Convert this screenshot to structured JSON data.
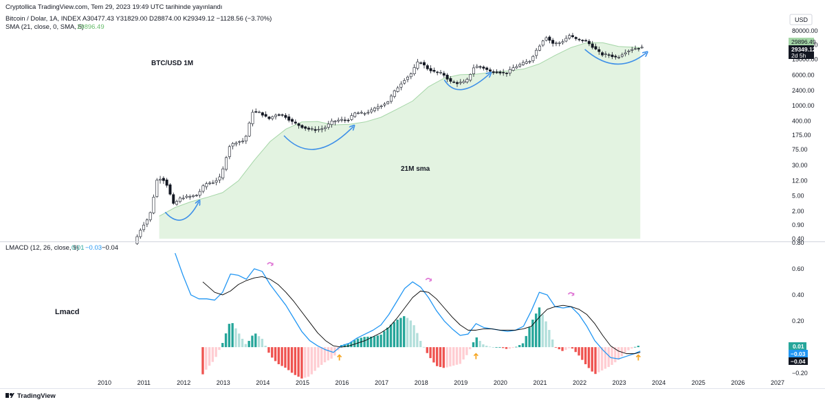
{
  "header": {
    "publisher_line": "Cryptollica TradingView.com, Tem 29, 2023 19:49 UTC tarihinde yayınlandı",
    "symbol_line": "Bitcoin / Dolar, 1A, INDEX  A30477.43  Y31829.00  D28874.00  K29349.12  −1128.56 (−3.70%)",
    "sma_line": "SMA (21, close, 0, SMA, 5)",
    "sma_value": "29896.49"
  },
  "currency_label": "USD",
  "annotations": {
    "pair_label": "BTC/USD 1M",
    "sma_label": "21M sma",
    "macd_label": "Lmacd"
  },
  "price_badges": {
    "sma": "29896.49",
    "close": "29349.12",
    "countdown": "2d 5h"
  },
  "macd_badges": {
    "histogram": "0.01",
    "macd": "−0.03",
    "signal": "−0.04"
  },
  "macd_header": {
    "label": "LMACD (12, 26, close, 9)",
    "hist_value": "0.01",
    "macd_value": "−0.03",
    "signal_value": "−0.04"
  },
  "footer": {
    "logo_text": "TradingView"
  },
  "colors": {
    "sma_fill": "#e3f3e1",
    "sma_line": "#a5d6a7",
    "macd_line": "#2196f3",
    "signal_line": "#000000",
    "hist_up_strong": "#26a69a",
    "hist_up_weak": "#b2dfdb",
    "hist_down_strong": "#ef5350",
    "hist_down_weak": "#ffcdd2",
    "arrow_blue": "#3d8fe8",
    "arrow_up": "#f5a623",
    "arrow_down": "#e07ad6"
  },
  "chart_data": [
    {
      "type": "candlestick",
      "title": "Bitcoin / Dolar, 1A, INDEX",
      "y_scale": "log",
      "y_ticks": [
        "80000.00",
        "35000.00",
        "15000.00",
        "6000.00",
        "2400.00",
        "1000.00",
        "400.00",
        "175.00",
        "75.00",
        "30.00",
        "12.00",
        "5.00",
        "2.00",
        "0.90",
        "0.40"
      ],
      "x_ticks": [
        "2010",
        "2011",
        "2012",
        "2013",
        "2014",
        "2015",
        "2016",
        "2017",
        "2018",
        "2019",
        "2020",
        "2021",
        "2022",
        "2023",
        "2024",
        "2025",
        "2026",
        "2027"
      ],
      "ohlc_last": {
        "open": 30477.43,
        "high": 31829.0,
        "low": 28874.0,
        "close": 29349.12,
        "change": -1128.56,
        "change_pct": -3.7
      },
      "sma_21_last": 29896.49,
      "series": [
        {
          "name": "price",
          "x": [
            2010.8,
            2011.0,
            2011.2,
            2011.4,
            2011.6,
            2011.8,
            2012.0,
            2012.2,
            2012.4,
            2012.6,
            2012.8,
            2013.0,
            2013.2,
            2013.4,
            2013.6,
            2013.8,
            2014.0,
            2014.2,
            2014.4,
            2014.6,
            2014.8,
            2015.0,
            2015.2,
            2015.4,
            2015.6,
            2015.8,
            2016.0,
            2016.2,
            2016.4,
            2016.6,
            2016.8,
            2017.0,
            2017.2,
            2017.4,
            2017.6,
            2017.8,
            2018.0,
            2018.2,
            2018.4,
            2018.6,
            2018.8,
            2019.0,
            2019.2,
            2019.4,
            2019.6,
            2019.8,
            2020.0,
            2020.2,
            2020.4,
            2020.6,
            2020.8,
            2021.0,
            2021.2,
            2021.4,
            2021.6,
            2021.8,
            2022.0,
            2022.2,
            2022.4,
            2022.6,
            2022.8,
            2023.0,
            2023.2,
            2023.4,
            2023.55
          ],
          "y": [
            0.3,
            0.8,
            1.5,
            15,
            12,
            3,
            4.5,
            4.7,
            5.2,
            10,
            11,
            15,
            90,
            120,
            125,
            700,
            650,
            450,
            600,
            550,
            380,
            300,
            250,
            240,
            260,
            380,
            430,
            420,
            650,
            620,
            740,
            970,
            1200,
            2400,
            4300,
            6400,
            14000,
            9000,
            7000,
            6500,
            4000,
            3700,
            4100,
            10000,
            9500,
            7300,
            7200,
            6500,
            9400,
            11500,
            13800,
            29000,
            58000,
            37000,
            41000,
            61000,
            47000,
            45000,
            31000,
            20000,
            19500,
            16500,
            23000,
            28000,
            29349
          ]
        },
        {
          "name": "SMA 21",
          "x": [
            2011.4,
            2011.8,
            2012.2,
            2012.6,
            2013.0,
            2013.4,
            2013.8,
            2014.2,
            2014.6,
            2015.0,
            2015.4,
            2015.8,
            2016.2,
            2016.6,
            2017.0,
            2017.4,
            2017.8,
            2018.2,
            2018.6,
            2019.0,
            2019.4,
            2019.8,
            2020.2,
            2020.6,
            2021.0,
            2021.4,
            2021.8,
            2022.2,
            2022.6,
            2023.0,
            2023.55
          ],
          "y": [
            1.5,
            2.5,
            3.5,
            4.5,
            6,
            12,
            40,
            120,
            250,
            380,
            390,
            320,
            330,
            380,
            500,
            800,
            1300,
            3000,
            5000,
            6100,
            6300,
            7000,
            7600,
            8500,
            11500,
            19000,
            30000,
            40000,
            40000,
            32000,
            29896
          ]
        }
      ]
    },
    {
      "type": "line",
      "title": "LMACD (12, 26, close, 9)",
      "y_ticks": [
        "0.80",
        "0.60",
        "0.40",
        "0.20",
        "−0.20"
      ],
      "ylim": [
        -0.22,
        0.82
      ],
      "last_values": {
        "histogram": 0.01,
        "macd": -0.03,
        "signal": -0.04
      },
      "series": [
        {
          "name": "MACD",
          "x": [
            2011.8,
            2012.0,
            2012.2,
            2012.4,
            2012.6,
            2012.8,
            2013.0,
            2013.2,
            2013.4,
            2013.6,
            2013.8,
            2014.0,
            2014.2,
            2014.4,
            2014.6,
            2014.8,
            2015.0,
            2015.2,
            2015.4,
            2015.6,
            2015.8,
            2016.0,
            2016.2,
            2016.4,
            2016.6,
            2016.8,
            2017.0,
            2017.2,
            2017.4,
            2017.6,
            2017.8,
            2018.0,
            2018.2,
            2018.4,
            2018.6,
            2018.8,
            2019.0,
            2019.2,
            2019.4,
            2019.6,
            2019.8,
            2020.0,
            2020.2,
            2020.4,
            2020.6,
            2020.8,
            2021.0,
            2021.2,
            2021.4,
            2021.6,
            2021.8,
            2022.0,
            2022.2,
            2022.4,
            2022.6,
            2022.8,
            2023.0,
            2023.2,
            2023.4,
            2023.55
          ],
          "y": [
            0.72,
            0.55,
            0.4,
            0.37,
            0.37,
            0.36,
            0.42,
            0.56,
            0.55,
            0.52,
            0.6,
            0.58,
            0.48,
            0.4,
            0.32,
            0.22,
            0.12,
            0.05,
            0.01,
            -0.02,
            -0.04,
            0.01,
            0.03,
            0.07,
            0.1,
            0.13,
            0.17,
            0.25,
            0.35,
            0.45,
            0.5,
            0.46,
            0.38,
            0.28,
            0.2,
            0.14,
            0.09,
            0.1,
            0.18,
            0.15,
            0.14,
            0.13,
            0.12,
            0.13,
            0.16,
            0.28,
            0.42,
            0.4,
            0.31,
            0.3,
            0.31,
            0.25,
            0.16,
            0.05,
            -0.02,
            -0.08,
            -0.09,
            -0.07,
            -0.05,
            -0.03
          ]
        },
        {
          "name": "Signal",
          "x": [
            2012.5,
            2012.8,
            2013.0,
            2013.2,
            2013.4,
            2013.6,
            2013.8,
            2014.0,
            2014.2,
            2014.4,
            2014.6,
            2014.8,
            2015.0,
            2015.2,
            2015.4,
            2015.6,
            2015.8,
            2016.0,
            2016.2,
            2016.4,
            2016.6,
            2016.8,
            2017.0,
            2017.2,
            2017.4,
            2017.6,
            2017.8,
            2018.0,
            2018.2,
            2018.4,
            2018.6,
            2018.8,
            2019.0,
            2019.2,
            2019.4,
            2019.6,
            2019.8,
            2020.0,
            2020.2,
            2020.4,
            2020.6,
            2020.8,
            2021.0,
            2021.2,
            2021.4,
            2021.6,
            2021.8,
            2022.0,
            2022.2,
            2022.4,
            2022.6,
            2022.8,
            2023.0,
            2023.2,
            2023.4,
            2023.55
          ],
          "y": [
            0.5,
            0.42,
            0.4,
            0.43,
            0.48,
            0.51,
            0.53,
            0.54,
            0.52,
            0.48,
            0.42,
            0.35,
            0.27,
            0.19,
            0.11,
            0.05,
            0.01,
            0.0,
            0.01,
            0.03,
            0.05,
            0.08,
            0.11,
            0.15,
            0.22,
            0.3,
            0.38,
            0.43,
            0.42,
            0.37,
            0.3,
            0.23,
            0.17,
            0.13,
            0.13,
            0.14,
            0.14,
            0.13,
            0.13,
            0.13,
            0.14,
            0.16,
            0.23,
            0.29,
            0.31,
            0.32,
            0.31,
            0.29,
            0.25,
            0.18,
            0.09,
            0.01,
            -0.03,
            -0.05,
            -0.05,
            -0.04
          ]
        }
      ]
    }
  ]
}
